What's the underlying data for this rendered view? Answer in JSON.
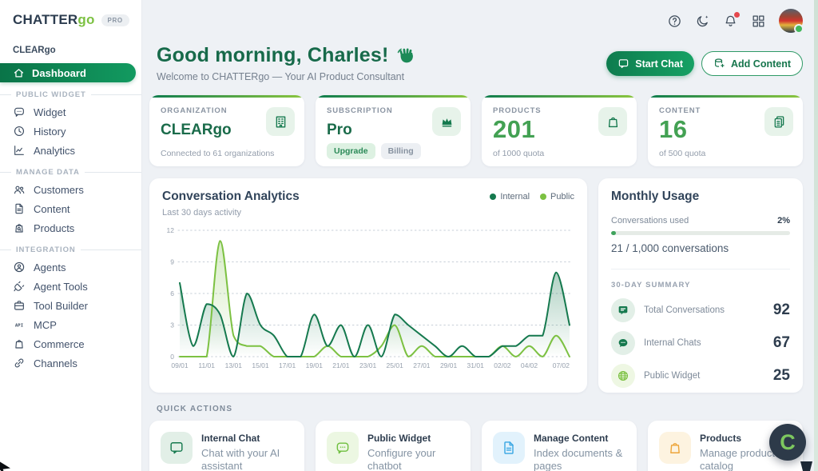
{
  "brand": {
    "name_primary": "CHATTER",
    "name_accent": "go",
    "badge": "PRO"
  },
  "topbar": {
    "icons": [
      {
        "name": "help",
        "label": "Help"
      },
      {
        "name": "moon",
        "label": "Dark mode"
      },
      {
        "name": "bell",
        "label": "Notifications",
        "has_badge": true
      },
      {
        "name": "grid",
        "label": "Apps"
      }
    ],
    "avatar": {
      "status_color": "#43b85c"
    }
  },
  "sidebar": {
    "org_label": "CLEARgo",
    "active": {
      "label": "Dashboard",
      "icon": "home"
    },
    "sections": [
      {
        "label": "PUBLIC WIDGET",
        "items": [
          {
            "label": "Widget",
            "icon": "chat-bubble"
          },
          {
            "label": "History",
            "icon": "clock"
          },
          {
            "label": "Analytics",
            "icon": "chart"
          }
        ]
      },
      {
        "label": "MANAGE DATA",
        "items": [
          {
            "label": "Customers",
            "icon": "users"
          },
          {
            "label": "Content",
            "icon": "document"
          },
          {
            "label": "Products",
            "icon": "bag-search"
          }
        ]
      },
      {
        "label": "INTEGRATION",
        "items": [
          {
            "label": "Agents",
            "icon": "agent"
          },
          {
            "label": "Agent Tools",
            "icon": "plug"
          },
          {
            "label": "Tool Builder",
            "icon": "briefcase"
          },
          {
            "label": "MCP",
            "icon": "api"
          },
          {
            "label": "Commerce",
            "icon": "bag"
          },
          {
            "label": "Channels",
            "icon": "link"
          }
        ]
      }
    ]
  },
  "header": {
    "greeting": "Good morning, Charles!",
    "subtitle": "Welcome to CHATTERgo — Your AI Product Consultant",
    "buttons": [
      {
        "label": "Start Chat",
        "style": "primary",
        "icon": "chat"
      },
      {
        "label": "Add Content",
        "style": "outline",
        "icon": "database-add"
      }
    ]
  },
  "stat_cards": [
    {
      "label": "ORGANIZATION",
      "value": "CLEARgo",
      "value_style": "name",
      "subtext": "Connected to 61 organizations",
      "icon": "building"
    },
    {
      "label": "SUBSCRIPTION",
      "value": "Pro",
      "value_style": "name",
      "icon": "crown",
      "chips": [
        {
          "label": "Upgrade",
          "style": "green"
        },
        {
          "label": "Billing",
          "style": "gray"
        }
      ]
    },
    {
      "label": "PRODUCTS",
      "value": "201",
      "value_style": "number",
      "subtext": "of 1000 quota",
      "icon": "bag"
    },
    {
      "label": "CONTENT",
      "value": "16",
      "value_style": "number",
      "subtext": "of 500 quota",
      "icon": "documents"
    }
  ],
  "chart_data": {
    "type": "area",
    "title": "Conversation Analytics",
    "subtitle": "Last 30 days activity",
    "x": [
      "09/01",
      "10/01",
      "11/01",
      "12/01",
      "13/01",
      "14/01",
      "15/01",
      "16/01",
      "17/01",
      "18/01",
      "19/01",
      "20/01",
      "21/01",
      "22/01",
      "23/01",
      "24/01",
      "25/01",
      "26/01",
      "27/01",
      "28/01",
      "29/01",
      "30/01",
      "31/01",
      "01/02",
      "02/02",
      "03/02",
      "04/02",
      "05/02",
      "06/02",
      "07/02"
    ],
    "x_tick_indices": [
      0,
      2,
      4,
      6,
      8,
      10,
      12,
      14,
      16,
      18,
      20,
      22,
      24,
      26,
      29
    ],
    "yticks": [
      0,
      3,
      6,
      9,
      12
    ],
    "ylim": [
      0,
      12
    ],
    "grid": true,
    "legend_position": "top-right",
    "series": [
      {
        "name": "Internal",
        "color": "#15794e",
        "values": [
          7,
          1,
          5,
          4,
          0,
          6,
          3,
          2,
          0,
          0,
          4,
          1,
          3,
          0,
          3,
          0,
          4,
          3,
          2,
          1,
          0,
          1,
          0,
          0,
          1,
          1,
          2,
          2,
          8,
          3
        ]
      },
      {
        "name": "Public",
        "color": "#7cc142",
        "values": [
          0,
          0,
          0,
          11,
          2,
          1,
          1,
          0,
          0,
          0,
          0,
          1,
          0,
          0,
          0,
          1,
          3,
          0,
          1,
          0,
          0,
          0,
          0,
          0,
          1,
          0,
          1,
          0,
          2,
          0
        ]
      }
    ]
  },
  "usage_card": {
    "title": "Monthly Usage",
    "usage_label": "Conversations used",
    "usage_percent": "2%",
    "usage_percent_value": 2,
    "usage_detail": "21 / 1,000 conversations",
    "summary_label": "30-DAY SUMMARY",
    "summary": [
      {
        "label": "Total Conversations",
        "value": "92",
        "icon": "chat-square",
        "icon_color": "#15794e",
        "icon_bg": "#e2efe7"
      },
      {
        "label": "Internal Chats",
        "value": "67",
        "icon": "chat-bubble-filled",
        "icon_color": "#15794e",
        "icon_bg": "#e2efe7"
      },
      {
        "label": "Public Widget",
        "value": "25",
        "icon": "globe",
        "icon_color": "#7cc142",
        "icon_bg": "#eef7e3"
      }
    ]
  },
  "quick_actions": {
    "label": "QUICK ACTIONS",
    "items": [
      {
        "title": "Internal Chat",
        "desc": "Chat with your AI assistant",
        "icon": "chat",
        "color": "#15794e",
        "bg": "#e2efe7"
      },
      {
        "title": "Public Widget",
        "desc": "Configure your chatbot",
        "icon": "chat-bubble",
        "color": "#6fbf3f",
        "bg": "#ecf7e2"
      },
      {
        "title": "Manage Content",
        "desc": "Index documents & pages",
        "icon": "document",
        "color": "#38a6e3",
        "bg": "#e2f2fc"
      },
      {
        "title": "Products",
        "desc": "Manage product catalog",
        "icon": "bag",
        "color": "#eda53a",
        "bg": "#fdf3e0"
      }
    ]
  },
  "floating_widget": {
    "letter": "C"
  },
  "colors": {
    "accent_dark": "#15794e",
    "accent_light": "#7cc142"
  }
}
